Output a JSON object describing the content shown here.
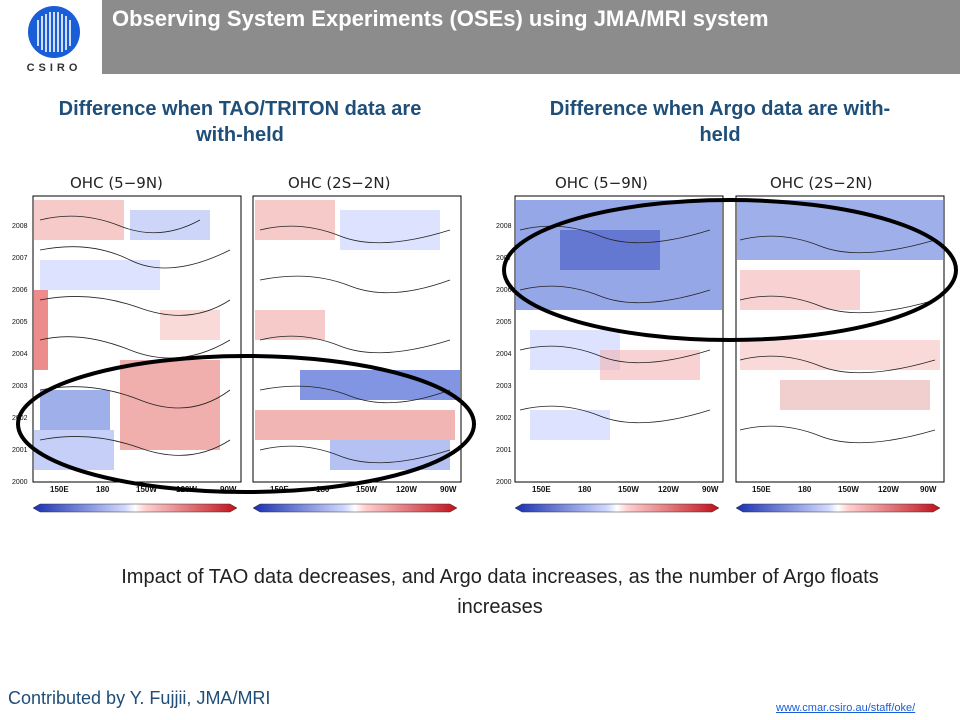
{
  "header": {
    "title": "Observing System Experiments (OSEs) using JMA/MRI system",
    "bg_color": "#8c8c8c"
  },
  "logo": {
    "text": "CSIRO",
    "icon": "csiro-logo-icon"
  },
  "left_figure": {
    "subtitle": "Difference when TAO/TRITON data are with-held",
    "panels": [
      {
        "title": "OHC (5−9N)"
      },
      {
        "title": "OHC (2S−2N)"
      }
    ]
  },
  "right_figure": {
    "subtitle": "Difference when Argo data are with-held",
    "panels": [
      {
        "title": "OHC (5−9N)"
      },
      {
        "title": "OHC (2S−2N)"
      }
    ]
  },
  "axes": {
    "y_ticks": [
      "2008",
      "2007",
      "2006",
      "2005",
      "2004",
      "2003",
      "2002",
      "2001",
      "2000"
    ],
    "x_ticks": [
      "150E",
      "180",
      "150W",
      "120W",
      "90W"
    ]
  },
  "colors": {
    "warm": "#e0413f",
    "cool": "#2f4fd0",
    "title": "#1f4e79",
    "ellipse": "#000000"
  },
  "caption": "Impact of TAO data decreases, and Argo data increases, as the number of Argo floats increases",
  "credit": "Contributed by Y. Fujjii, JMA/MRI",
  "url": "www.cmar.csiro.au/staff/oke/"
}
